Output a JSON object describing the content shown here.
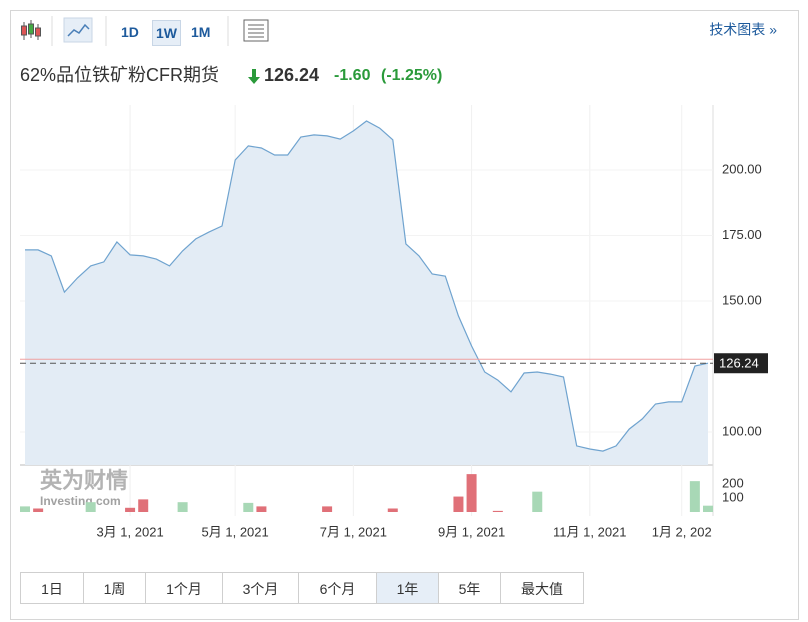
{
  "toolbar": {
    "periods": [
      "1D",
      "1W",
      "1M"
    ],
    "active_period": 1,
    "link": "技术图表 »"
  },
  "header": {
    "name": "62%品位铁矿粉CFR期货",
    "change": "-1.60",
    "change_pct": "(-1.25%)"
  },
  "watermark": {
    "brand": "英为财情",
    "site": "Investing.com"
  },
  "ranges": [
    "1日",
    "1周",
    "1个月",
    "3个月",
    "6个月",
    "1年",
    "5年",
    "最大值"
  ],
  "active_range": 5,
  "chart_data": {
    "type": "area",
    "color": "#6fa3cf",
    "fill": "#e3ecf5",
    "last_value": 126.24,
    "categories": [
      null,
      null,
      null,
      null,
      null,
      null,
      null,
      null,
      "3月 1, 2021",
      null,
      null,
      null,
      null,
      null,
      null,
      null,
      "5月 1, 2021",
      null,
      null,
      null,
      null,
      null,
      null,
      null,
      null,
      "7月 1, 2021",
      null,
      null,
      null,
      null,
      null,
      null,
      null,
      null,
      "9月 1, 2021",
      null,
      null,
      null,
      null,
      null,
      null,
      null,
      null,
      "11月 1, 2021",
      null,
      null,
      null,
      null,
      null,
      null,
      "1月 2, 202",
      null,
      null
    ],
    "values": [
      169.5,
      169.5,
      167.2,
      153.4,
      158.8,
      163.4,
      164.9,
      172.5,
      167.6,
      167.2,
      166,
      163.4,
      169.1,
      173.7,
      176.3,
      178.6,
      203.8,
      209.2,
      208.4,
      205.7,
      205.7,
      212.6,
      213.4,
      213,
      211.8,
      214.9,
      218.7,
      216,
      211.5,
      171.8,
      167.2,
      160.3,
      159.5,
      144.3,
      132.8,
      122.9,
      119.8,
      115.3,
      122.5,
      122.9,
      122.1,
      121,
      94.7,
      93.5,
      92.7,
      94.7,
      101.1,
      105,
      110.7,
      111.5,
      111.5,
      125.2,
      126.24
    ],
    "ylim": [
      87.4,
      224.8
    ],
    "yticks": [
      {
        "value": 100,
        "label": "100.00"
      },
      {
        "value": 150,
        "label": "150.00"
      },
      {
        "value": 175,
        "label": "175.00"
      },
      {
        "value": 200,
        "label": "200.00"
      }
    ],
    "grid": true,
    "volume": {
      "values": [
        40,
        25,
        0,
        0,
        0,
        70,
        0,
        0,
        30,
        90,
        0,
        0,
        70,
        0,
        0,
        0,
        0,
        65,
        40,
        0,
        0,
        0,
        0,
        40,
        0,
        0,
        0,
        0,
        25,
        0,
        0,
        0,
        0,
        110,
        270,
        0,
        8,
        0,
        0,
        145,
        0,
        0,
        0,
        0,
        0,
        0,
        0,
        0,
        0,
        0,
        0,
        220,
        45
      ],
      "colors": [
        "#a8d8b6",
        "#e07078",
        null,
        null,
        null,
        "#a8d8b6",
        null,
        null,
        "#e07078",
        "#e07078",
        null,
        null,
        "#a8d8b6",
        null,
        null,
        null,
        null,
        "#a8d8b6",
        "#e07078",
        null,
        null,
        null,
        null,
        "#e07078",
        null,
        null,
        null,
        null,
        "#e07078",
        null,
        null,
        null,
        null,
        "#e07078",
        "#e07078",
        null,
        "#e07078",
        null,
        null,
        "#a8d8b6",
        null,
        null,
        null,
        null,
        null,
        null,
        null,
        null,
        null,
        null,
        null,
        "#a8d8b6",
        "#a8d8b6"
      ],
      "ylim": [
        0,
        335
      ],
      "yticks": [
        100,
        200
      ]
    }
  }
}
